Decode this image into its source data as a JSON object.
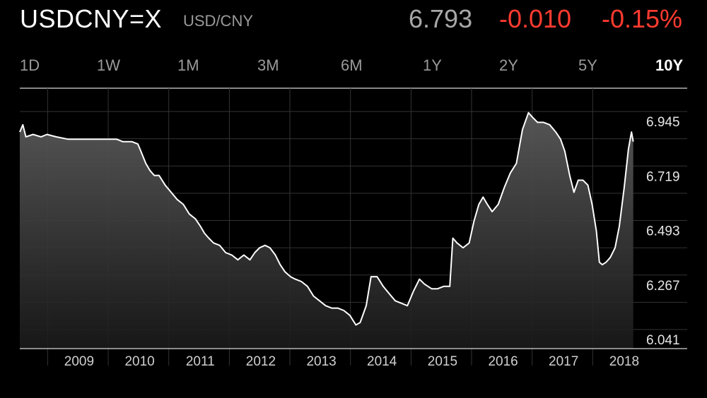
{
  "header": {
    "symbol": "USDCNY=X",
    "subtitle": "USD/CNY",
    "price": "6.793",
    "change": "-0.010",
    "change_percent": "-0.15%"
  },
  "colors": {
    "background": "#000000",
    "negative": "#ff3b30",
    "line": "#ffffff",
    "muted": "#9a9a9a"
  },
  "ranges": [
    {
      "label": "1D",
      "active": false
    },
    {
      "label": "1W",
      "active": false
    },
    {
      "label": "1M",
      "active": false
    },
    {
      "label": "3M",
      "active": false
    },
    {
      "label": "6M",
      "active": false
    },
    {
      "label": "1Y",
      "active": false
    },
    {
      "label": "2Y",
      "active": false
    },
    {
      "label": "5Y",
      "active": false
    },
    {
      "label": "10Y",
      "active": true
    }
  ],
  "chart_data": {
    "type": "area",
    "xlabel": "",
    "ylabel": "",
    "grid": true,
    "x_ticks": [
      "2009",
      "2010",
      "2011",
      "2012",
      "2013",
      "2014",
      "2015",
      "2016",
      "2017",
      "2018"
    ],
    "y_ticks": [
      6.945,
      6.719,
      6.493,
      6.267,
      6.041
    ],
    "ylim": [
      6.0,
      7.0
    ],
    "xlim": [
      2008.5,
      2018.75
    ],
    "series": [
      {
        "values": [
          [
            2008.5,
            6.86
          ],
          [
            2008.55,
            6.89
          ],
          [
            2008.6,
            6.84
          ],
          [
            2008.72,
            6.85
          ],
          [
            2008.85,
            6.84
          ],
          [
            2008.95,
            6.85
          ],
          [
            2009.1,
            6.84
          ],
          [
            2009.3,
            6.83
          ],
          [
            2009.5,
            6.83
          ],
          [
            2009.65,
            6.83
          ],
          [
            2009.75,
            6.83
          ],
          [
            2009.85,
            6.83
          ],
          [
            2010.0,
            6.83
          ],
          [
            2010.1,
            6.83
          ],
          [
            2010.2,
            6.82
          ],
          [
            2010.35,
            6.82
          ],
          [
            2010.45,
            6.81
          ],
          [
            2010.5,
            6.78
          ],
          [
            2010.58,
            6.73
          ],
          [
            2010.65,
            6.7
          ],
          [
            2010.72,
            6.68
          ],
          [
            2010.8,
            6.68
          ],
          [
            2010.9,
            6.64
          ],
          [
            2011.0,
            6.61
          ],
          [
            2011.1,
            6.58
          ],
          [
            2011.2,
            6.56
          ],
          [
            2011.3,
            6.52
          ],
          [
            2011.4,
            6.5
          ],
          [
            2011.48,
            6.47
          ],
          [
            2011.55,
            6.44
          ],
          [
            2011.62,
            6.42
          ],
          [
            2011.7,
            6.4
          ],
          [
            2011.8,
            6.39
          ],
          [
            2011.9,
            6.36
          ],
          [
            2012.0,
            6.35
          ],
          [
            2012.1,
            6.33
          ],
          [
            2012.2,
            6.35
          ],
          [
            2012.3,
            6.33
          ],
          [
            2012.38,
            6.36
          ],
          [
            2012.46,
            6.38
          ],
          [
            2012.55,
            6.39
          ],
          [
            2012.63,
            6.38
          ],
          [
            2012.72,
            6.35
          ],
          [
            2012.8,
            6.31
          ],
          [
            2012.88,
            6.28
          ],
          [
            2012.97,
            6.26
          ],
          [
            2013.05,
            6.25
          ],
          [
            2013.15,
            6.24
          ],
          [
            2013.25,
            6.22
          ],
          [
            2013.35,
            6.18
          ],
          [
            2013.45,
            6.16
          ],
          [
            2013.55,
            6.14
          ],
          [
            2013.65,
            6.13
          ],
          [
            2013.75,
            6.13
          ],
          [
            2013.85,
            6.12
          ],
          [
            2013.95,
            6.1
          ],
          [
            2014.05,
            6.06
          ],
          [
            2014.12,
            6.07
          ],
          [
            2014.22,
            6.14
          ],
          [
            2014.3,
            6.26
          ],
          [
            2014.4,
            6.26
          ],
          [
            2014.5,
            6.22
          ],
          [
            2014.6,
            6.19
          ],
          [
            2014.7,
            6.16
          ],
          [
            2014.8,
            6.15
          ],
          [
            2014.9,
            6.14
          ],
          [
            2015.0,
            6.2
          ],
          [
            2015.1,
            6.25
          ],
          [
            2015.18,
            6.23
          ],
          [
            2015.3,
            6.21
          ],
          [
            2015.4,
            6.21
          ],
          [
            2015.5,
            6.22
          ],
          [
            2015.6,
            6.22
          ],
          [
            2015.65,
            6.42
          ],
          [
            2015.72,
            6.4
          ],
          [
            2015.82,
            6.38
          ],
          [
            2015.92,
            6.4
          ],
          [
            2016.0,
            6.49
          ],
          [
            2016.08,
            6.56
          ],
          [
            2016.15,
            6.59
          ],
          [
            2016.22,
            6.56
          ],
          [
            2016.3,
            6.53
          ],
          [
            2016.4,
            6.56
          ],
          [
            2016.5,
            6.63
          ],
          [
            2016.6,
            6.69
          ],
          [
            2016.7,
            6.73
          ],
          [
            2016.8,
            6.87
          ],
          [
            2016.9,
            6.94
          ],
          [
            2016.97,
            6.92
          ],
          [
            2017.05,
            6.9
          ],
          [
            2017.15,
            6.9
          ],
          [
            2017.25,
            6.89
          ],
          [
            2017.35,
            6.86
          ],
          [
            2017.43,
            6.83
          ],
          [
            2017.5,
            6.78
          ],
          [
            2017.58,
            6.68
          ],
          [
            2017.65,
            6.61
          ],
          [
            2017.72,
            6.66
          ],
          [
            2017.8,
            6.66
          ],
          [
            2017.88,
            6.64
          ],
          [
            2017.95,
            6.56
          ],
          [
            2018.02,
            6.45
          ],
          [
            2018.07,
            6.32
          ],
          [
            2018.12,
            6.31
          ],
          [
            2018.18,
            6.32
          ],
          [
            2018.25,
            6.34
          ],
          [
            2018.33,
            6.38
          ],
          [
            2018.4,
            6.47
          ],
          [
            2018.48,
            6.63
          ],
          [
            2018.55,
            6.79
          ],
          [
            2018.6,
            6.86
          ],
          [
            2018.63,
            6.82
          ]
        ]
      }
    ]
  }
}
